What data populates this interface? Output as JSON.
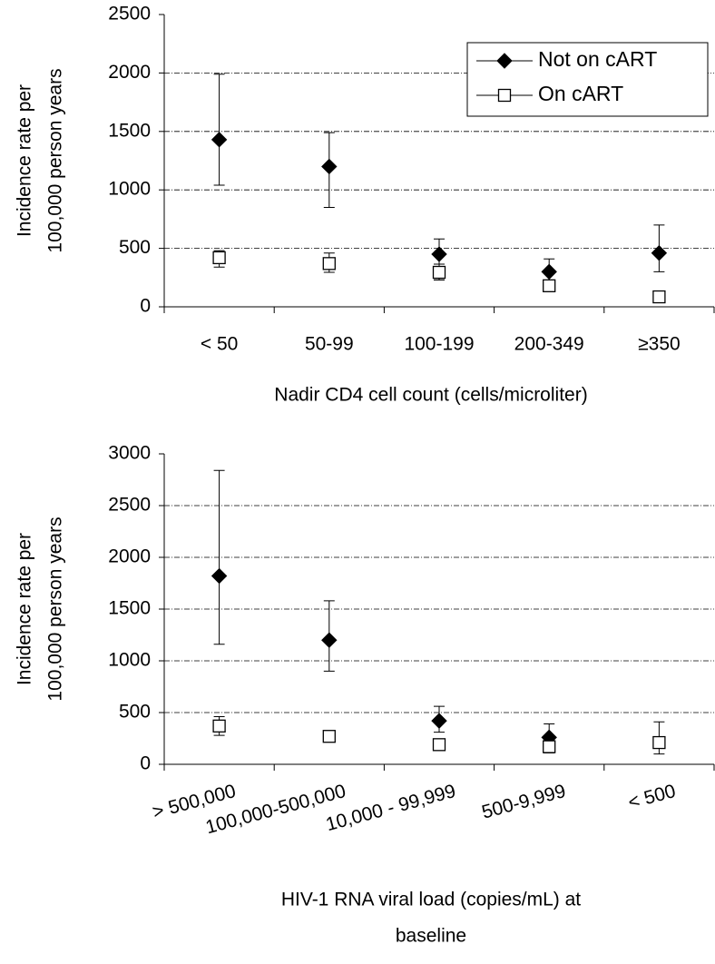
{
  "chart_data": [
    {
      "type": "errorbar",
      "y_label": [
        "Incidence rate per",
        "100,000 person years"
      ],
      "x_label": [
        "Nadir CD4 cell count (cells/microliter)"
      ],
      "categories": [
        "< 50",
        "50-99",
        "100-199",
        "200-349",
        "≥350"
      ],
      "ylim": [
        0,
        2500
      ],
      "yticks": [
        0,
        500,
        1000,
        1500,
        2000,
        2500
      ],
      "grid": true,
      "legend": "upper right",
      "series": [
        {
          "name": "Not on cART",
          "color": "#000000",
          "marker": "diamond",
          "filled": true,
          "values": [
            1430,
            1200,
            450,
            300,
            460
          ],
          "lower": [
            1040,
            850,
            230,
            220,
            300
          ],
          "upper": [
            1990,
            1490,
            580,
            410,
            700
          ]
        },
        {
          "name": "On cART",
          "color": "#000000",
          "marker": "square",
          "filled": false,
          "values": [
            420,
            370,
            295,
            180,
            85
          ],
          "lower": [
            340,
            295,
            230,
            130,
            55
          ],
          "upper": [
            480,
            460,
            365,
            225,
            130
          ]
        }
      ]
    },
    {
      "type": "errorbar",
      "y_label": [
        "Incidence rate per",
        "100,000 person years"
      ],
      "x_label": [
        "HIV-1 RNA viral load (copies/mL) at",
        "baseline"
      ],
      "categories": [
        "> 500,000",
        "100,000-500,000",
        "10,000 - 99,999",
        "500-9,999",
        "< 500"
      ],
      "ylim": [
        0,
        3000
      ],
      "yticks": [
        0,
        500,
        1000,
        1500,
        2000,
        2500,
        3000
      ],
      "grid": true,
      "rotate_labels": true,
      "series": [
        {
          "color": "#000000",
          "marker": "diamond",
          "filled": true,
          "values": [
            1820,
            1200,
            420,
            260,
            null
          ],
          "lower": [
            1160,
            900,
            310,
            110,
            null
          ],
          "upper": [
            2840,
            1580,
            560,
            390,
            null
          ]
        },
        {
          "color": "#000000",
          "marker": "square",
          "filled": false,
          "values": [
            370,
            270,
            190,
            170,
            210
          ],
          "lower": [
            280,
            240,
            150,
            120,
            100
          ],
          "upper": [
            460,
            300,
            230,
            220,
            410
          ]
        }
      ]
    }
  ]
}
